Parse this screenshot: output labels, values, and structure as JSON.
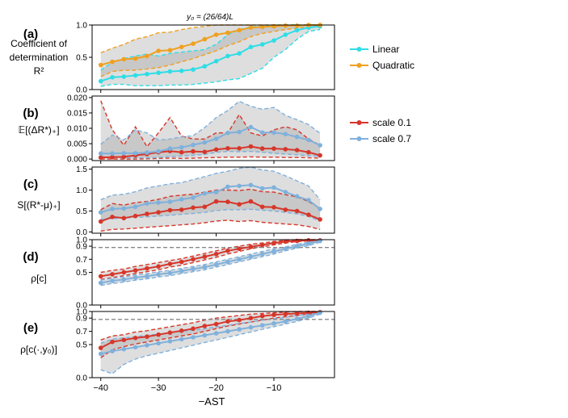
{
  "figure_title": "y₀ = (26/64)L",
  "xlabel": "−AST",
  "x_ticks": [
    -40,
    -30,
    -20,
    -10
  ],
  "x_tick_labels": [
    "−40",
    "−30",
    "−20",
    "−10"
  ],
  "legend_a": {
    "entries": [
      {
        "label": "Linear",
        "color": "#2fdde6"
      },
      {
        "label": "Quadratic",
        "color": "#f0a020"
      }
    ]
  },
  "legend_b": {
    "entries": [
      {
        "label": "scale 0.1",
        "color": "#d7362a"
      },
      {
        "label": "scale 0.7",
        "color": "#7fb1dc"
      }
    ]
  },
  "chart_data": [
    {
      "panel": "(a)",
      "type": "line",
      "ylabel_lines": [
        "Coefficient of",
        "determination",
        "R²"
      ],
      "ylim": [
        0,
        1
      ],
      "yticks": [
        0.0,
        0.5,
        1.0
      ],
      "ytick_labels": [
        "0.0",
        "0.5",
        "1.0"
      ],
      "x": [
        -40,
        -38,
        -36,
        -34,
        -32,
        -30,
        -28,
        -26,
        -24,
        -22,
        -20,
        -18,
        -16,
        -14,
        -12,
        -10,
        -8,
        -6,
        -4,
        -2
      ],
      "series": [
        {
          "name": "Linear",
          "color": "#2fdde6",
          "values": [
            0.13,
            0.19,
            0.2,
            0.22,
            0.24,
            0.26,
            0.28,
            0.29,
            0.31,
            0.36,
            0.44,
            0.52,
            0.56,
            0.66,
            0.7,
            0.76,
            0.85,
            0.92,
            0.96,
            0.98
          ],
          "lower": [
            0.05,
            0.08,
            0.08,
            0.06,
            0.06,
            0.06,
            0.07,
            0.07,
            0.08,
            0.1,
            0.12,
            0.15,
            0.17,
            0.25,
            0.33,
            0.5,
            0.62,
            0.78,
            0.9,
            0.93
          ],
          "upper": [
            0.3,
            0.42,
            0.48,
            0.52,
            0.55,
            0.52,
            0.56,
            0.58,
            0.6,
            0.62,
            0.7,
            0.85,
            0.93,
            0.97,
            0.98,
            0.99,
            1.0,
            1.0,
            1.0,
            1.0
          ]
        },
        {
          "name": "Quadratic",
          "color": "#f0a020",
          "values": [
            0.38,
            0.43,
            0.47,
            0.48,
            0.52,
            0.6,
            0.61,
            0.66,
            0.71,
            0.78,
            0.85,
            0.88,
            0.92,
            0.96,
            0.97,
            0.98,
            0.99,
            0.99,
            1.0,
            1.0
          ],
          "lower": [
            0.2,
            0.28,
            0.3,
            0.3,
            0.32,
            0.34,
            0.38,
            0.43,
            0.48,
            0.54,
            0.6,
            0.68,
            0.74,
            0.82,
            0.87,
            0.9,
            0.93,
            0.95,
            0.97,
            0.98
          ],
          "upper": [
            0.57,
            0.64,
            0.7,
            0.78,
            0.82,
            0.88,
            0.89,
            0.93,
            0.96,
            0.98,
            1.0,
            1.0,
            1.0,
            1.0,
            1.0,
            1.0,
            1.0,
            1.0,
            1.0,
            1.0
          ]
        }
      ]
    },
    {
      "panel": "(b)",
      "type": "line",
      "ylabel_lines": [
        "𝔼[(ΔR*)₊]"
      ],
      "ylim": [
        -0.0005,
        0.0205
      ],
      "yticks": [
        0.0,
        0.005,
        0.01,
        0.015,
        0.02
      ],
      "ytick_labels": [
        "0.000",
        "0.005",
        "0.010",
        "0.015",
        "0.020"
      ],
      "x": [
        -40,
        -38,
        -36,
        -34,
        -32,
        -30,
        -28,
        -26,
        -24,
        -22,
        -20,
        -18,
        -16,
        -14,
        -12,
        -10,
        -8,
        -6,
        -4,
        -2
      ],
      "series": [
        {
          "name": "scale 0.1",
          "color": "#d7362a",
          "values": [
            0.0005,
            0.0006,
            0.0007,
            0.0012,
            0.0016,
            0.0022,
            0.0026,
            0.0022,
            0.0025,
            0.0023,
            0.0031,
            0.0035,
            0.0035,
            0.0041,
            0.0034,
            0.0034,
            0.0032,
            0.0029,
            0.0022,
            0.0012
          ],
          "lower": [
            0.0,
            0.0,
            0.0,
            0.0,
            0.0001,
            0.0002,
            0.0003,
            0.0002,
            0.0003,
            0.0004,
            0.0005,
            0.0006,
            0.0006,
            0.0007,
            0.0006,
            0.0006,
            0.0005,
            0.0005,
            0.0004,
            0.0003
          ],
          "upper": [
            0.019,
            0.0095,
            0.0045,
            0.0105,
            0.004,
            0.0085,
            0.0135,
            0.0075,
            0.0065,
            0.0065,
            0.0085,
            0.0085,
            0.0145,
            0.0085,
            0.0075,
            0.0095,
            0.0105,
            0.0095,
            0.0065,
            0.0045
          ]
        },
        {
          "name": "scale 0.7",
          "color": "#7fb1dc",
          "values": [
            0.0018,
            0.0018,
            0.0019,
            0.0019,
            0.0021,
            0.0025,
            0.0034,
            0.0038,
            0.0046,
            0.0054,
            0.0066,
            0.0085,
            0.0088,
            0.0104,
            0.0086,
            0.0086,
            0.0081,
            0.0072,
            0.0062,
            0.0045
          ],
          "lower": [
            0.0008,
            0.0005,
            0.0004,
            0.0004,
            0.0004,
            0.0005,
            0.0008,
            0.001,
            0.0012,
            0.0015,
            0.0022,
            0.0025,
            0.0024,
            0.0025,
            0.0022,
            0.0019,
            0.0016,
            0.0014,
            0.0011,
            0.0009
          ],
          "upper": [
            0.0048,
            0.0078,
            0.0062,
            0.0095,
            0.0085,
            0.0062,
            0.0065,
            0.0072,
            0.0076,
            0.0102,
            0.0135,
            0.0158,
            0.0188,
            0.0172,
            0.0162,
            0.0168,
            0.0142,
            0.0128,
            0.0112,
            0.0084
          ]
        }
      ]
    },
    {
      "panel": "(c)",
      "type": "line",
      "ylabel_lines": [
        "S[(R*-μ)₊]"
      ],
      "ylim": [
        -0.03,
        1.55
      ],
      "yticks": [
        0.0,
        0.5,
        1.0,
        1.5
      ],
      "ytick_labels": [
        "0.0",
        "0.5",
        "1.0",
        "1.5"
      ],
      "x": [
        -40,
        -38,
        -36,
        -34,
        -32,
        -30,
        -28,
        -26,
        -24,
        -22,
        -20,
        -18,
        -16,
        -14,
        -12,
        -10,
        -8,
        -6,
        -4,
        -2
      ],
      "series": [
        {
          "name": "scale 0.1",
          "color": "#d7362a",
          "values": [
            0.25,
            0.36,
            0.33,
            0.38,
            0.43,
            0.47,
            0.52,
            0.53,
            0.58,
            0.6,
            0.73,
            0.72,
            0.66,
            0.73,
            0.6,
            0.59,
            0.53,
            0.5,
            0.41,
            0.3
          ],
          "lower": [
            0.02,
            0.06,
            0.07,
            0.09,
            0.11,
            0.13,
            0.15,
            0.17,
            0.19,
            0.22,
            0.26,
            0.28,
            0.25,
            0.27,
            0.23,
            0.21,
            0.19,
            0.17,
            0.13,
            0.06
          ],
          "upper": [
            0.53,
            0.68,
            0.64,
            0.7,
            0.73,
            0.78,
            0.85,
            0.88,
            0.9,
            0.95,
            1.0,
            1.0,
            0.99,
            1.02,
            0.96,
            0.95,
            0.89,
            0.84,
            0.73,
            0.56
          ]
        },
        {
          "name": "scale 0.7",
          "color": "#7fb1dc",
          "values": [
            0.47,
            0.55,
            0.56,
            0.6,
            0.68,
            0.7,
            0.72,
            0.78,
            0.82,
            0.92,
            0.95,
            1.08,
            1.1,
            1.12,
            1.04,
            1.06,
            0.95,
            0.85,
            0.76,
            0.55
          ],
          "lower": [
            0.3,
            0.32,
            0.33,
            0.35,
            0.36,
            0.38,
            0.4,
            0.42,
            0.44,
            0.47,
            0.51,
            0.53,
            0.53,
            0.54,
            0.52,
            0.5,
            0.47,
            0.43,
            0.37,
            0.26
          ],
          "upper": [
            0.77,
            0.88,
            0.9,
            0.96,
            1.05,
            1.1,
            1.15,
            1.18,
            1.25,
            1.32,
            1.4,
            1.45,
            1.52,
            1.55,
            1.48,
            1.45,
            1.34,
            1.22,
            1.1,
            0.77
          ]
        }
      ]
    },
    {
      "panel": "(d)",
      "type": "line",
      "ylabel_lines": [
        "ρ[c]"
      ],
      "ylim": [
        0,
        1
      ],
      "yticks": [
        0.0,
        0.5,
        0.7,
        0.9,
        1.0
      ],
      "ytick_labels": [
        "0.0",
        "0.5",
        "0.7",
        "0.9",
        "1.0"
      ],
      "hline": {
        "value": 0.88,
        "color": "#888888"
      },
      "x": [
        -40,
        -38,
        -36,
        -34,
        -32,
        -30,
        -28,
        -26,
        -24,
        -22,
        -20,
        -18,
        -16,
        -14,
        -12,
        -10,
        -8,
        -6,
        -4,
        -2
      ],
      "series": [
        {
          "name": "scale 0.1",
          "color": "#d7362a",
          "values": [
            0.44,
            0.47,
            0.5,
            0.53,
            0.56,
            0.59,
            0.63,
            0.66,
            0.7,
            0.74,
            0.78,
            0.83,
            0.86,
            0.89,
            0.92,
            0.95,
            0.97,
            0.98,
            0.99,
            0.99
          ],
          "lower": [
            0.39,
            0.42,
            0.45,
            0.48,
            0.51,
            0.54,
            0.58,
            0.61,
            0.65,
            0.69,
            0.73,
            0.78,
            0.82,
            0.86,
            0.89,
            0.92,
            0.95,
            0.97,
            0.98,
            0.98
          ],
          "upper": [
            0.5,
            0.53,
            0.55,
            0.59,
            0.62,
            0.65,
            0.68,
            0.71,
            0.75,
            0.79,
            0.83,
            0.87,
            0.9,
            0.93,
            0.95,
            0.97,
            0.99,
            1.0,
            1.0,
            1.0
          ]
        },
        {
          "name": "scale 0.7",
          "color": "#7fb1dc",
          "values": [
            0.34,
            0.37,
            0.39,
            0.42,
            0.44,
            0.47,
            0.49,
            0.52,
            0.55,
            0.58,
            0.62,
            0.66,
            0.7,
            0.74,
            0.78,
            0.82,
            0.86,
            0.9,
            0.94,
            0.98
          ],
          "lower": [
            0.3,
            0.33,
            0.35,
            0.38,
            0.4,
            0.43,
            0.45,
            0.48,
            0.51,
            0.54,
            0.58,
            0.62,
            0.66,
            0.7,
            0.74,
            0.78,
            0.83,
            0.87,
            0.91,
            0.96
          ],
          "upper": [
            0.38,
            0.41,
            0.43,
            0.46,
            0.48,
            0.51,
            0.53,
            0.56,
            0.59,
            0.62,
            0.66,
            0.7,
            0.74,
            0.78,
            0.82,
            0.86,
            0.89,
            0.93,
            0.96,
            0.99
          ]
        }
      ]
    },
    {
      "panel": "(e)",
      "type": "line",
      "ylabel_lines": [
        "ρ[c(·,y₀)]"
      ],
      "ylim": [
        0,
        1
      ],
      "yticks": [
        0.0,
        0.5,
        0.7,
        0.9,
        1.0
      ],
      "ytick_labels": [
        "0.0",
        "0.5",
        "0.7",
        "0.9",
        "1.0"
      ],
      "hline": {
        "value": 0.88,
        "color": "#888888"
      },
      "x": [
        -40,
        -38,
        -36,
        -34,
        -32,
        -30,
        -28,
        -26,
        -24,
        -22,
        -20,
        -18,
        -16,
        -14,
        -12,
        -10,
        -8,
        -6,
        -4,
        -2
      ],
      "series": [
        {
          "name": "scale 0.1",
          "color": "#d7362a",
          "values": [
            0.45,
            0.54,
            0.57,
            0.6,
            0.62,
            0.65,
            0.68,
            0.71,
            0.74,
            0.78,
            0.81,
            0.85,
            0.87,
            0.9,
            0.93,
            0.95,
            0.96,
            0.97,
            0.98,
            0.99
          ],
          "lower": [
            0.3,
            0.42,
            0.47,
            0.51,
            0.54,
            0.57,
            0.6,
            0.63,
            0.66,
            0.7,
            0.74,
            0.78,
            0.81,
            0.84,
            0.87,
            0.9,
            0.92,
            0.94,
            0.96,
            0.98
          ],
          "upper": [
            0.57,
            0.63,
            0.65,
            0.69,
            0.71,
            0.74,
            0.77,
            0.8,
            0.83,
            0.87,
            0.9,
            0.92,
            0.94,
            0.96,
            0.97,
            0.98,
            0.99,
            1.0,
            1.0,
            1.0
          ]
        },
        {
          "name": "scale 0.7",
          "color": "#7fb1dc",
          "values": [
            0.36,
            0.4,
            0.43,
            0.46,
            0.49,
            0.52,
            0.55,
            0.58,
            0.61,
            0.64,
            0.67,
            0.7,
            0.73,
            0.76,
            0.79,
            0.82,
            0.85,
            0.89,
            0.93,
            0.98
          ],
          "lower": [
            0.12,
            0.06,
            0.2,
            0.28,
            0.33,
            0.37,
            0.41,
            0.45,
            0.49,
            0.53,
            0.57,
            0.61,
            0.65,
            0.69,
            0.73,
            0.77,
            0.81,
            0.85,
            0.9,
            0.96
          ],
          "upper": [
            0.52,
            0.58,
            0.6,
            0.62,
            0.64,
            0.66,
            0.68,
            0.7,
            0.72,
            0.74,
            0.77,
            0.79,
            0.82,
            0.84,
            0.87,
            0.89,
            0.91,
            0.94,
            0.96,
            0.99
          ]
        }
      ]
    }
  ]
}
